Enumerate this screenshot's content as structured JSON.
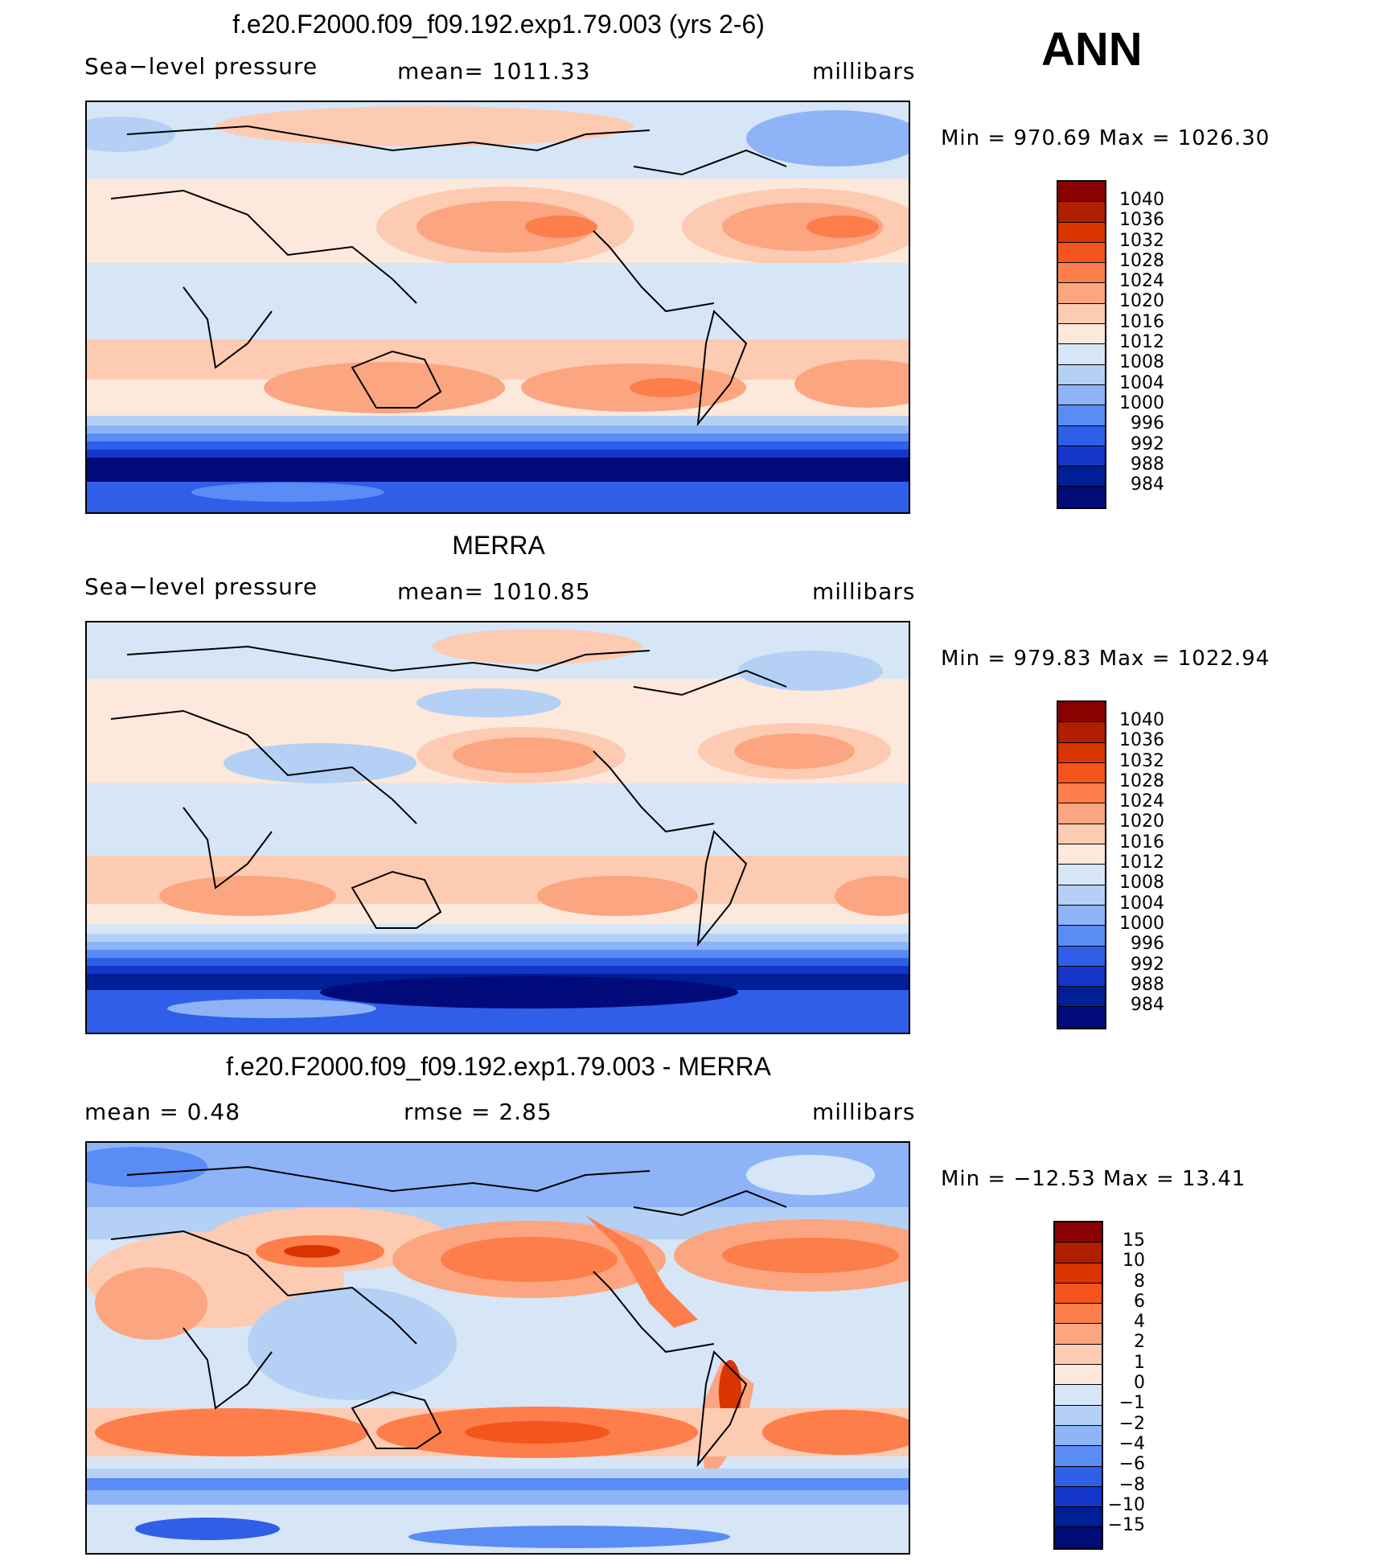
{
  "season": "ANN",
  "panels": [
    {
      "title": "f.e20.F2000.f09_f09.192.exp1.79.003 (yrs 2-6)",
      "left_label": "Sea−level pressure",
      "center_label": "mean=  1011.33",
      "units": "millibars",
      "minmax": "Min  =  970.69  Max  =  1026.30",
      "colorbar_levels": [
        "1040",
        "1036",
        "1032",
        "1028",
        "1024",
        "1020",
        "1016",
        "1012",
        "1008",
        "1004",
        "1000",
        "996",
        "992",
        "988",
        "984"
      ],
      "colorbar_colors": [
        "#8b0000",
        "#b01e00",
        "#d93500",
        "#f5551c",
        "#fd7e4a",
        "#fca581",
        "#fdcab2",
        "#fde8dc",
        "#d6e6f7",
        "#b4d0f5",
        "#8eb4f7",
        "#5a8cf5",
        "#2f5fe8",
        "#1436c9",
        "#001e96",
        "#000a78"
      ]
    },
    {
      "title": "MERRA",
      "left_label": "Sea−level pressure",
      "center_label": "mean=  1010.85",
      "units": "millibars",
      "minmax": "Min  =  979.83  Max  =  1022.94",
      "colorbar_levels": [
        "1040",
        "1036",
        "1032",
        "1028",
        "1024",
        "1020",
        "1016",
        "1012",
        "1008",
        "1004",
        "1000",
        "996",
        "992",
        "988",
        "984"
      ],
      "colorbar_colors": [
        "#8b0000",
        "#b01e00",
        "#d93500",
        "#f5551c",
        "#fd7e4a",
        "#fca581",
        "#fdcab2",
        "#fde8dc",
        "#d6e6f7",
        "#b4d0f5",
        "#8eb4f7",
        "#5a8cf5",
        "#2f5fe8",
        "#1436c9",
        "#001e96",
        "#000a78"
      ]
    },
    {
      "title": "f.e20.F2000.f09_f09.192.exp1.79.003 - MERRA",
      "left_label": "mean  =     0.48",
      "center_label": "rmse  =     2.85",
      "units": "millibars",
      "minmax": "Min  =  −12.53  Max  =    13.41",
      "colorbar_levels": [
        "15",
        "10",
        "8",
        "6",
        "4",
        "2",
        "1",
        "0",
        "−1",
        "−2",
        "−4",
        "−6",
        "−8",
        "−10",
        "−15"
      ],
      "colorbar_colors": [
        "#8b0000",
        "#b01e00",
        "#d93500",
        "#f5551c",
        "#fd7e4a",
        "#fca581",
        "#fdcab2",
        "#fde8dc",
        "#d6e6f7",
        "#b4d0f5",
        "#8eb4f7",
        "#5a8cf5",
        "#2f5fe8",
        "#1436c9",
        "#001e96",
        "#000a78"
      ]
    }
  ]
}
